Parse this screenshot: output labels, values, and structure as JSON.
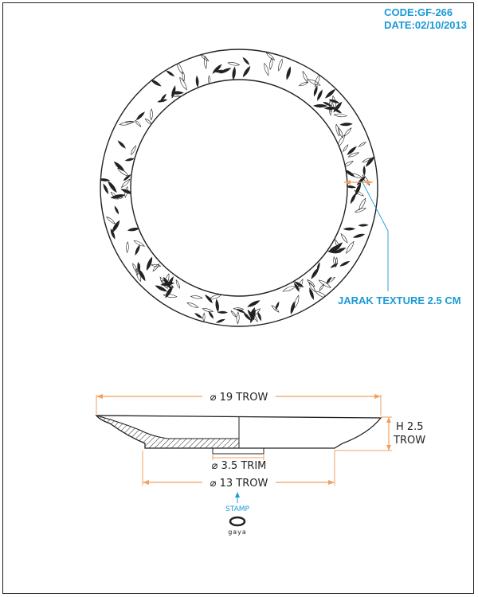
{
  "header": {
    "code": "CODE:GF-266",
    "date": "DATE:02/10/2013"
  },
  "annotations": {
    "texture": "JARAK TEXTURE 2.5 CM"
  },
  "dimensions": {
    "top_diameter": "⌀ 19 TROW",
    "height_line1": "H 2.5",
    "height_line2": "TROW",
    "trim": "⌀ 3.5 TRIM",
    "base_diameter": "⌀ 13 TROW"
  },
  "stamp": {
    "label": "STAMP",
    "brand": "gaya"
  },
  "colors": {
    "accent_blue": "#1a9ad6",
    "dimension_orange": "#f0a060",
    "line": "#222222"
  }
}
